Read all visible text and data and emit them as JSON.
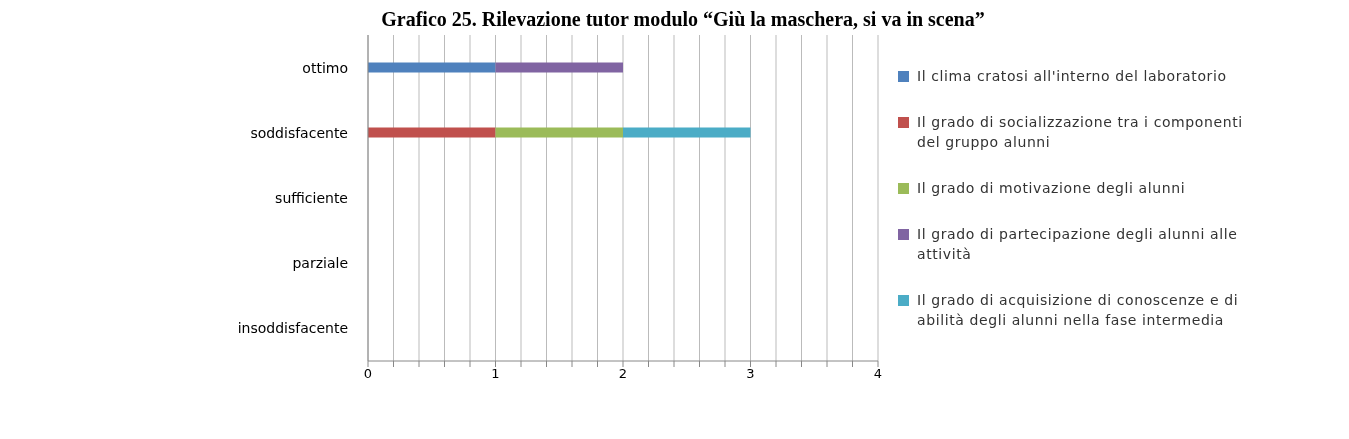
{
  "chart_data": {
    "type": "bar",
    "orientation": "horizontal",
    "stacked": true,
    "title": "Grafico 25. Rilevazione tutor modulo “Giù la maschera, si va in scena”",
    "categories": [
      "ottimo",
      "soddisfacente",
      "sufficiente",
      "parziale",
      "insoddisfacente"
    ],
    "series": [
      {
        "name": "Il clima cratosi all'interno del laboratorio",
        "color": "#4f81bd",
        "values": [
          1,
          0,
          0,
          0,
          0
        ]
      },
      {
        "name": "Il grado di socializzazione tra i componenti del gruppo alunni",
        "color": "#c0504d",
        "values": [
          0,
          1,
          0,
          0,
          0
        ]
      },
      {
        "name": "Il grado di motivazione  degli alunni",
        "color": "#9bbb59",
        "values": [
          0,
          1,
          0,
          0,
          0
        ]
      },
      {
        "name": "Il grado di partecipazione degli alunni alle attività",
        "color": "#8064a2",
        "values": [
          1,
          0,
          0,
          0,
          0
        ]
      },
      {
        "name": "Il grado di acquisizione di conoscenze e di abilità degli alunni nella fase intermedia",
        "color": "#4bacc6",
        "values": [
          0,
          1,
          0,
          0,
          0
        ]
      }
    ],
    "xlim": [
      0,
      4
    ],
    "xticks": [
      0,
      {
        "value": 0.2,
        "label": null
      },
      {
        "value": 0.4,
        "label": null
      },
      {
        "value": 0.6,
        "label": null
      },
      {
        "value": 0.8,
        "label": null
      },
      1,
      {
        "value": 1.2,
        "label": null
      },
      {
        "value": 1.4,
        "label": null
      },
      {
        "value": 1.6,
        "label": null
      },
      {
        "value": 1.8,
        "label": null
      },
      2,
      {
        "value": 2.2,
        "label": null
      },
      {
        "value": 2.4,
        "label": null
      },
      {
        "value": 2.6,
        "label": null
      },
      {
        "value": 2.8,
        "label": null
      },
      3,
      {
        "value": 3.2,
        "label": null
      },
      {
        "value": 3.4,
        "label": null
      },
      {
        "value": 3.6,
        "label": null
      },
      {
        "value": 3.8,
        "label": null
      },
      4
    ],
    "grid": "x",
    "legend": "right"
  }
}
